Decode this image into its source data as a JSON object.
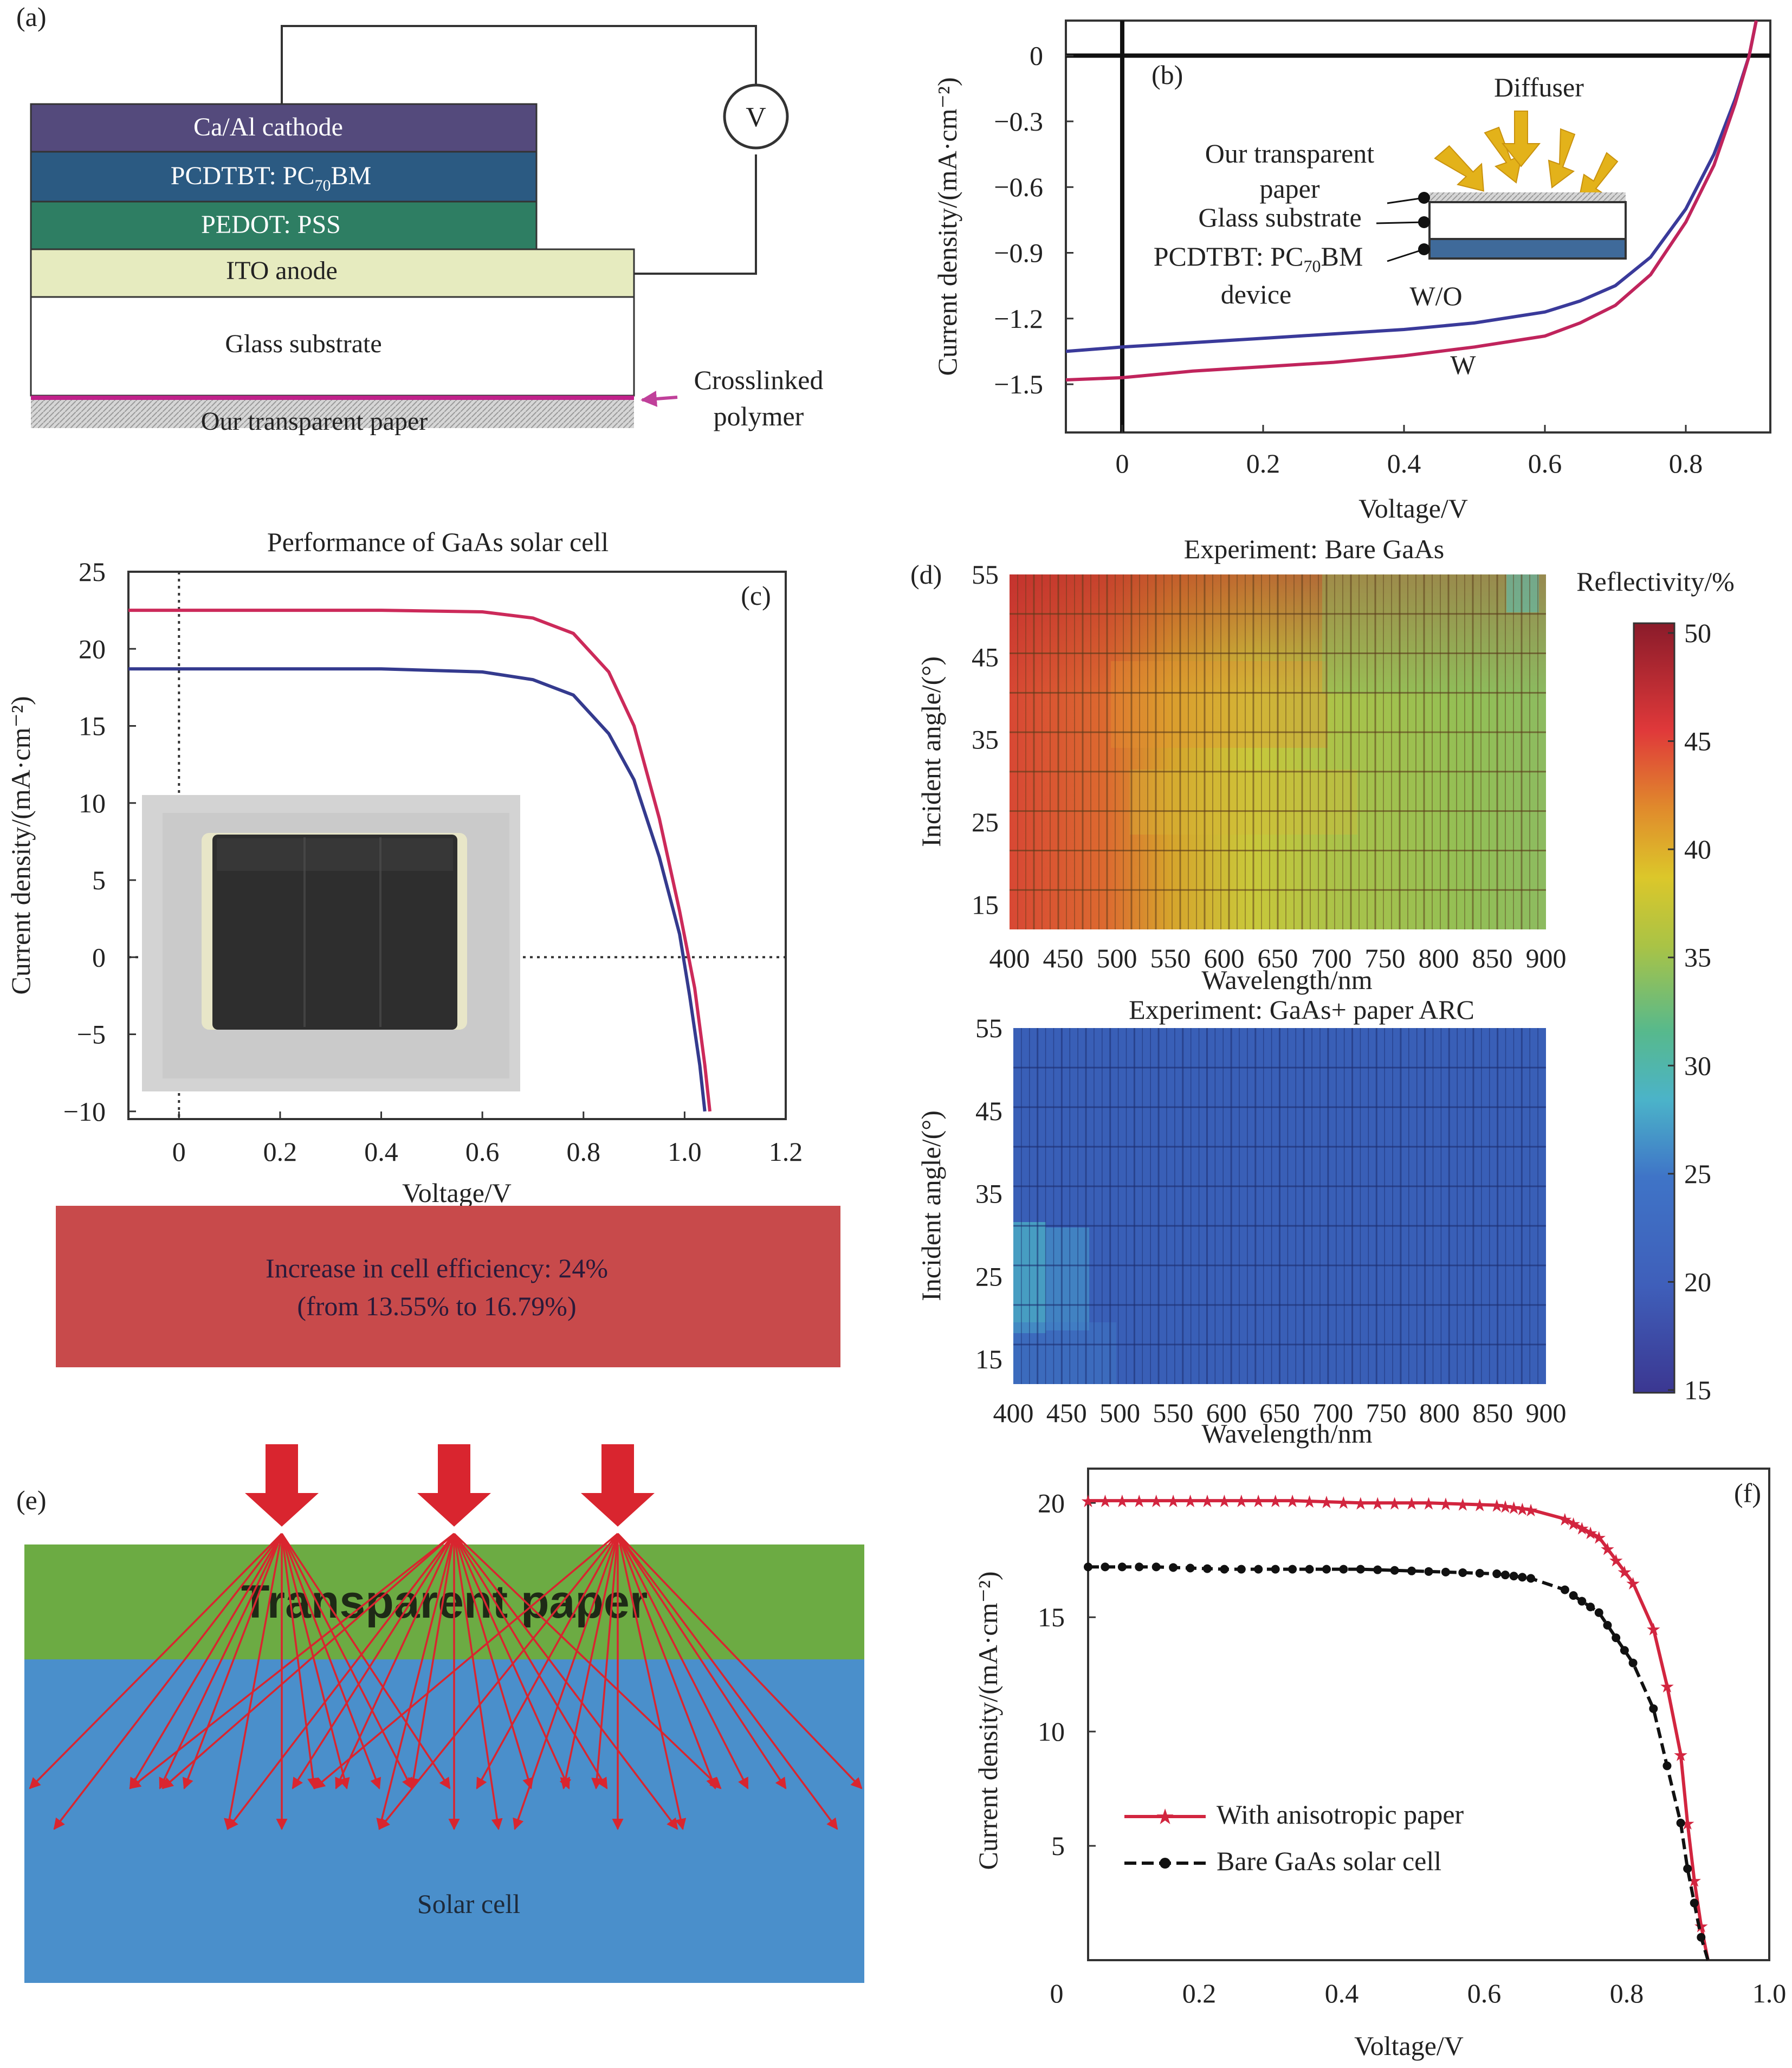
{
  "panels": {
    "a": {
      "tag": "(a)",
      "layers": {
        "cathode": "Ca/Al cathode",
        "active_prefix": "PCDTBT: PC",
        "active_sub": "70",
        "active_suffix": "BM",
        "pedot": "PEDOT: PSS",
        "ito": "ITO anode",
        "glass": "Glass substrate",
        "paper": "Our transparent paper"
      },
      "voltmeter": "V",
      "callout_line1": "Crosslinked",
      "callout_line2": "polymer",
      "colors": {
        "cathode": "#544a7c",
        "active": "#2b5a82",
        "pedot": "#2e7e63",
        "ito": "#e6ebbf",
        "polymer": "#c0218a",
        "arrow": "#c0409a"
      }
    },
    "b": {
      "tag": "(b)",
      "inset": {
        "diffuser": "Diffuser",
        "paper_line1": "Our transparent",
        "paper_line2": "paper",
        "glass": "Glass substrate",
        "device_prefix": "PCDTBT: PC",
        "device_sub": "70",
        "device_suffix": "BM",
        "device_line2": "device"
      },
      "label_wo": "W/O",
      "label_w": "W"
    },
    "c": {
      "tag": "(c)",
      "banner_line1": "Increase in cell efficiency: 24%",
      "banner_line2": "(from 13.55% to 16.79%)",
      "banner_color": "#c84a4b"
    },
    "d": {
      "tag": "(d)",
      "colorbar_title": "Reflectivity/%",
      "colorbar_ticks": [
        "50",
        "45",
        "40",
        "35",
        "30",
        "25",
        "20",
        "15"
      ]
    },
    "e": {
      "tag": "(e)",
      "paper_label": "Transparent paper",
      "cell_label": "Solar cell",
      "colors": {
        "paper": "#6cab43",
        "cell": "#4a8fcb",
        "arrow": "#d9252f"
      }
    },
    "f": {
      "tag": "(f)"
    }
  },
  "chart_data": [
    {
      "id": "b",
      "type": "line",
      "xlabel": "Voltage/V",
      "ylabel": "Current density/(mA·cm⁻²)",
      "xlim": [
        -0.08,
        0.92
      ],
      "ylim": [
        -1.72,
        0.16
      ],
      "xticks": [
        "0",
        "0.2",
        "0.4",
        "0.6",
        "0.8"
      ],
      "xtick_values": [
        0,
        0.2,
        0.4,
        0.6,
        0.8
      ],
      "yticks": [
        "0",
        "−0.3",
        "−0.6",
        "−0.9",
        "−1.2",
        "−1.5"
      ],
      "ytick_values": [
        0,
        -0.3,
        -0.6,
        -0.9,
        -1.2,
        -1.5
      ],
      "series": [
        {
          "name": "W/O",
          "color": "#3a3a9a",
          "x": [
            -0.08,
            0.0,
            0.1,
            0.2,
            0.3,
            0.4,
            0.5,
            0.6,
            0.65,
            0.7,
            0.75,
            0.8,
            0.84,
            0.87,
            0.89,
            0.9
          ],
          "y": [
            -1.35,
            -1.33,
            -1.31,
            -1.29,
            -1.27,
            -1.25,
            -1.22,
            -1.17,
            -1.12,
            -1.05,
            -0.92,
            -0.7,
            -0.45,
            -0.2,
            0.0,
            0.16
          ]
        },
        {
          "name": "W",
          "color": "#c0245c",
          "x": [
            -0.08,
            0.0,
            0.1,
            0.2,
            0.3,
            0.4,
            0.5,
            0.6,
            0.65,
            0.7,
            0.75,
            0.8,
            0.84,
            0.87,
            0.89,
            0.9
          ],
          "y": [
            -1.48,
            -1.47,
            -1.44,
            -1.42,
            -1.4,
            -1.37,
            -1.33,
            -1.28,
            -1.22,
            -1.14,
            -1.0,
            -0.76,
            -0.5,
            -0.22,
            0.0,
            0.16
          ]
        }
      ]
    },
    {
      "id": "c",
      "type": "line",
      "title": "Performance of GaAs solar cell",
      "xlabel": "Voltage/V",
      "ylabel": "Current density/(mA·cm⁻²)",
      "xlim": [
        -0.1,
        1.2
      ],
      "ylim": [
        -10.5,
        25
      ],
      "xticks": [
        "0",
        "0.2",
        "0.4",
        "0.6",
        "0.8",
        "1.0",
        "1.2"
      ],
      "xtick_values": [
        0,
        0.2,
        0.4,
        0.6,
        0.8,
        1.0,
        1.2
      ],
      "yticks": [
        "25",
        "20",
        "15",
        "10",
        "5",
        "0",
        "−5",
        "−10"
      ],
      "ytick_values": [
        25,
        20,
        15,
        10,
        5,
        0,
        -5,
        -10
      ],
      "series": [
        {
          "color": "#cc2a5a",
          "x": [
            -0.1,
            0.0,
            0.2,
            0.4,
            0.6,
            0.7,
            0.78,
            0.85,
            0.9,
            0.95,
            0.99,
            1.02,
            1.04,
            1.05
          ],
          "y": [
            22.5,
            22.5,
            22.5,
            22.5,
            22.4,
            22.0,
            21.0,
            18.5,
            15.0,
            9.0,
            3.0,
            -2.0,
            -7.0,
            -10.0
          ]
        },
        {
          "color": "#343a8e",
          "x": [
            -0.1,
            0.0,
            0.2,
            0.4,
            0.6,
            0.7,
            0.78,
            0.85,
            0.9,
            0.95,
            0.99,
            1.01,
            1.03,
            1.04
          ],
          "y": [
            18.7,
            18.7,
            18.7,
            18.7,
            18.5,
            18.0,
            17.0,
            14.5,
            11.5,
            6.5,
            1.5,
            -2.5,
            -7.0,
            -10.0
          ]
        }
      ]
    },
    {
      "id": "d-bare",
      "type": "heatmap",
      "title": "Experiment: Bare GaAs",
      "xlabel": "Wavelength/nm",
      "ylabel": "Incident angle/(°)",
      "xlim": [
        400,
        900
      ],
      "ylim": [
        12,
        55
      ],
      "xticks": [
        "400",
        "450",
        "500",
        "550",
        "600",
        "650",
        "700",
        "750",
        "800",
        "850",
        "900"
      ],
      "xtick_values": [
        400,
        450,
        500,
        550,
        600,
        650,
        700,
        750,
        800,
        850,
        900
      ],
      "yticks": [
        "55",
        "45",
        "35",
        "25",
        "15"
      ],
      "ytick_values": [
        55,
        45,
        35,
        25,
        15
      ],
      "colorbar_range": [
        15,
        50
      ],
      "wavelengths": [
        400,
        425,
        450,
        475,
        500,
        525,
        550,
        575,
        600,
        625,
        650,
        675,
        700,
        725,
        750,
        775,
        800,
        825,
        850,
        875,
        900
      ],
      "reflectivity_low_angle": [
        43,
        42,
        41,
        40,
        39,
        38,
        37,
        36.5,
        36,
        35.5,
        35,
        34.5,
        34,
        34,
        33.5,
        33.5,
        33,
        33,
        32.5,
        32.5,
        32
      ],
      "reflectivity_high_angle": [
        47,
        47,
        46.5,
        46,
        45.5,
        44,
        42,
        40,
        38,
        37,
        36,
        35,
        34,
        33.5,
        33,
        32.5,
        32,
        31.5,
        31,
        30,
        29
      ]
    },
    {
      "id": "d-arc",
      "type": "heatmap",
      "title": "Experiment: GaAs+ paper ARC",
      "xlabel": "Wavelength/nm",
      "ylabel": "Incident angle/(°)",
      "xlim": [
        400,
        900
      ],
      "ylim": [
        12,
        55
      ],
      "xticks": [
        "400",
        "450",
        "500",
        "550",
        "600",
        "650",
        "700",
        "750",
        "800",
        "850",
        "900"
      ],
      "xtick_values": [
        400,
        450,
        500,
        550,
        600,
        650,
        700,
        750,
        800,
        850,
        900
      ],
      "yticks": [
        "55",
        "45",
        "35",
        "25",
        "15"
      ],
      "ytick_values": [
        55,
        45,
        35,
        25,
        15
      ],
      "colorbar_range": [
        15,
        50
      ],
      "reflectivity_typical": 20,
      "reflectivity_low_angle_short_wavelength": 27
    },
    {
      "id": "f",
      "type": "line",
      "xlabel": "Voltage/V",
      "ylabel": "Current density/(mA·cm⁻²)",
      "xlim": [
        0,
        1.0
      ],
      "ylim": [
        0,
        21.5
      ],
      "xticks": [
        "0",
        "0.2",
        "0.4",
        "0.6",
        "0.8",
        "1.0"
      ],
      "xtick_values": [
        0,
        0.2,
        0.4,
        0.6,
        0.8,
        1.0
      ],
      "yticks": [
        "20",
        "15",
        "10",
        "5"
      ],
      "ytick_values": [
        20,
        15,
        10,
        5
      ],
      "series": [
        {
          "name": "With anisotropic paper",
          "color": "#d2253f",
          "marker": "star",
          "x": [
            0.0,
            0.1,
            0.2,
            0.3,
            0.4,
            0.5,
            0.6,
            0.65,
            0.7,
            0.75,
            0.8,
            0.83,
            0.85,
            0.87,
            0.88,
            0.89,
            0.9,
            0.91
          ],
          "y": [
            20.1,
            20.1,
            20.1,
            20.1,
            20.0,
            20.0,
            19.9,
            19.7,
            19.3,
            18.5,
            16.5,
            14.5,
            12.0,
            9.0,
            6.0,
            3.5,
            1.5,
            0.0
          ]
        },
        {
          "name": "Bare GaAs solar cell",
          "color": "#111111",
          "marker": "circle",
          "x": [
            0.0,
            0.1,
            0.2,
            0.3,
            0.4,
            0.5,
            0.6,
            0.65,
            0.7,
            0.75,
            0.8,
            0.83,
            0.85,
            0.87,
            0.88,
            0.89,
            0.9,
            0.91
          ],
          "y": [
            17.2,
            17.2,
            17.1,
            17.1,
            17.1,
            17.0,
            16.9,
            16.7,
            16.2,
            15.2,
            13.0,
            11.0,
            8.5,
            6.0,
            4.0,
            2.5,
            1.0,
            0.0
          ]
        }
      ]
    }
  ]
}
